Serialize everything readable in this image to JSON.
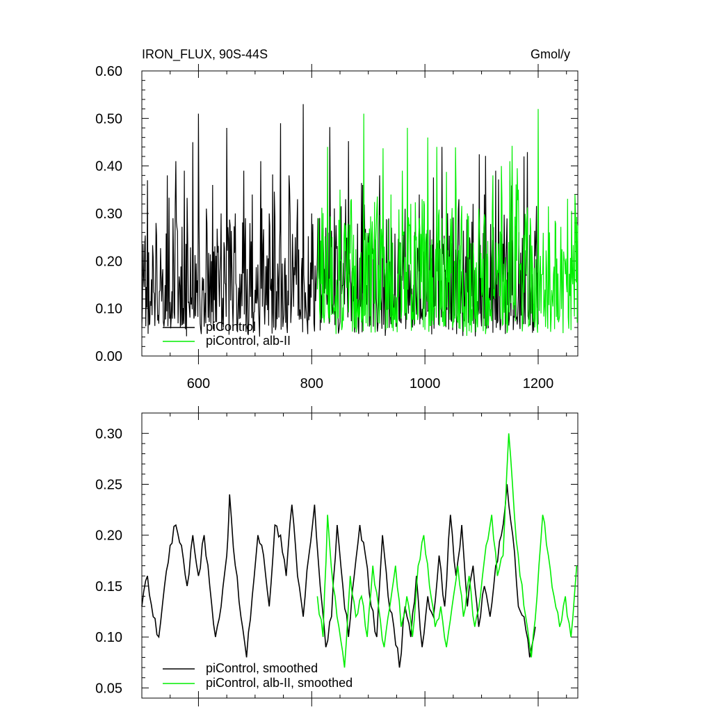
{
  "chart_data": [
    {
      "type": "line",
      "title": "IRON_FLUX, 90S-44S",
      "units": "Gmol/y",
      "xlim": [
        500,
        1270
      ],
      "ylim": [
        0.0,
        0.6
      ],
      "xticks": [
        600,
        800,
        1000,
        1200
      ],
      "xtick_labels": [
        "600",
        "800",
        "1000",
        "1200"
      ],
      "yticks": [
        0.0,
        0.1,
        0.2,
        0.3,
        0.4,
        0.5,
        0.6
      ],
      "ytick_labels": [
        "0.00",
        "0.10",
        "0.20",
        "0.30",
        "0.40",
        "0.50",
        "0.60"
      ],
      "grid": false,
      "legend_position": "bottom-left",
      "series": [
        {
          "name": "piControl",
          "color": "#000000",
          "x_range": [
            500,
            1200
          ],
          "baseline": 0.11,
          "peaks": [
            [
              510,
              0.37
            ],
            [
              525,
              0.28
            ],
            [
              545,
              0.38
            ],
            [
              555,
              0.29
            ],
            [
              560,
              0.41
            ],
            [
              575,
              0.39
            ],
            [
              590,
              0.45
            ],
            [
              600,
              0.51
            ],
            [
              615,
              0.28
            ],
            [
              625,
              0.36
            ],
            [
              640,
              0.3
            ],
            [
              650,
              0.48
            ],
            [
              665,
              0.3
            ],
            [
              680,
              0.39
            ],
            [
              695,
              0.34
            ],
            [
              710,
              0.41
            ],
            [
              725,
              0.3
            ],
            [
              745,
              0.49
            ],
            [
              760,
              0.38
            ],
            [
              775,
              0.33
            ],
            [
              785,
              0.53
            ],
            [
              800,
              0.3
            ],
            [
              825,
              0.27
            ],
            [
              860,
              0.33
            ],
            [
              890,
              0.36
            ],
            [
              920,
              0.38
            ],
            [
              965,
              0.31
            ],
            [
              990,
              0.34
            ],
            [
              1030,
              0.44
            ],
            [
              1060,
              0.33
            ],
            [
              1085,
              0.32
            ],
            [
              1105,
              0.34
            ],
            [
              1125,
              0.39
            ],
            [
              1150,
              0.37
            ],
            [
              1175,
              0.42
            ],
            [
              1195,
              0.21
            ]
          ]
        },
        {
          "name": "piControl, alb-II",
          "color": "#00ee00",
          "x_range": [
            810,
            1270
          ],
          "baseline": 0.12,
          "peaks": [
            [
              828,
              0.44
            ],
            [
              850,
              0.35
            ],
            [
              870,
              0.33
            ],
            [
              892,
              0.51
            ],
            [
              915,
              0.31
            ],
            [
              940,
              0.34
            ],
            [
              960,
              0.39
            ],
            [
              975,
              0.32
            ],
            [
              995,
              0.33
            ],
            [
              1005,
              0.46
            ],
            [
              1030,
              0.29
            ],
            [
              1055,
              0.35
            ],
            [
              1075,
              0.3
            ],
            [
              1095,
              0.31
            ],
            [
              1120,
              0.38
            ],
            [
              1135,
              0.4
            ],
            [
              1150,
              0.41
            ],
            [
              1165,
              0.35
            ],
            [
              1180,
              0.28
            ],
            [
              1200,
              0.52
            ],
            [
              1220,
              0.26
            ],
            [
              1245,
              0.22
            ],
            [
              1265,
              0.34
            ]
          ]
        }
      ]
    },
    {
      "type": "line",
      "xlim": [
        500,
        1270
      ],
      "ylim": [
        0.04,
        0.32
      ],
      "xticks": [
        600,
        800,
        1000,
        1200
      ],
      "yticks": [
        0.05,
        0.1,
        0.15,
        0.2,
        0.25,
        0.3
      ],
      "ytick_labels": [
        "0.05",
        "0.10",
        "0.15",
        "0.20",
        "0.25",
        "0.30"
      ],
      "grid": false,
      "legend_position": "bottom-left",
      "series": [
        {
          "name": "piControl, smoothed",
          "color": "#000000",
          "x_range": [
            500,
            1200
          ],
          "points": [
            [
              500,
              0.13
            ],
            [
              510,
              0.16
            ],
            [
              520,
              0.12
            ],
            [
              530,
              0.1
            ],
            [
              540,
              0.15
            ],
            [
              550,
              0.19
            ],
            [
              560,
              0.21
            ],
            [
              570,
              0.19
            ],
            [
              580,
              0.15
            ],
            [
              590,
              0.2
            ],
            [
              600,
              0.16
            ],
            [
              610,
              0.2
            ],
            [
              620,
              0.15
            ],
            [
              630,
              0.1
            ],
            [
              640,
              0.13
            ],
            [
              650,
              0.18
            ],
            [
              655,
              0.24
            ],
            [
              665,
              0.17
            ],
            [
              675,
              0.12
            ],
            [
              685,
              0.08
            ],
            [
              695,
              0.14
            ],
            [
              705,
              0.2
            ],
            [
              715,
              0.18
            ],
            [
              725,
              0.13
            ],
            [
              735,
              0.21
            ],
            [
              745,
              0.2
            ],
            [
              755,
              0.16
            ],
            [
              765,
              0.23
            ],
            [
              775,
              0.16
            ],
            [
              785,
              0.12
            ],
            [
              795,
              0.18
            ],
            [
              805,
              0.23
            ],
            [
              815,
              0.15
            ],
            [
              825,
              0.09
            ],
            [
              835,
              0.12
            ],
            [
              845,
              0.21
            ],
            [
              855,
              0.15
            ],
            [
              865,
              0.1
            ],
            [
              875,
              0.16
            ],
            [
              885,
              0.21
            ],
            [
              895,
              0.18
            ],
            [
              905,
              0.13
            ],
            [
              915,
              0.1
            ],
            [
              925,
              0.2
            ],
            [
              935,
              0.14
            ],
            [
              945,
              0.11
            ],
            [
              955,
              0.07
            ],
            [
              965,
              0.13
            ],
            [
              975,
              0.1
            ],
            [
              985,
              0.16
            ],
            [
              995,
              0.09
            ],
            [
              1005,
              0.14
            ],
            [
              1015,
              0.12
            ],
            [
              1025,
              0.18
            ],
            [
              1035,
              0.13
            ],
            [
              1045,
              0.22
            ],
            [
              1055,
              0.16
            ],
            [
              1065,
              0.21
            ],
            [
              1075,
              0.13
            ],
            [
              1085,
              0.17
            ],
            [
              1095,
              0.11
            ],
            [
              1105,
              0.15
            ],
            [
              1115,
              0.12
            ],
            [
              1125,
              0.17
            ],
            [
              1135,
              0.2
            ],
            [
              1145,
              0.25
            ],
            [
              1155,
              0.2
            ],
            [
              1165,
              0.13
            ],
            [
              1175,
              0.12
            ],
            [
              1185,
              0.08
            ],
            [
              1195,
              0.11
            ]
          ]
        },
        {
          "name": "piControl, alb-II, smoothed",
          "color": "#00ee00",
          "x_range": [
            810,
            1270
          ],
          "points": [
            [
              810,
              0.14
            ],
            [
              820,
              0.1
            ],
            [
              828,
              0.22
            ],
            [
              838,
              0.15
            ],
            [
              848,
              0.11
            ],
            [
              858,
              0.07
            ],
            [
              868,
              0.16
            ],
            [
              878,
              0.12
            ],
            [
              888,
              0.14
            ],
            [
              898,
              0.1
            ],
            [
              908,
              0.17
            ],
            [
              918,
              0.13
            ],
            [
              928,
              0.09
            ],
            [
              938,
              0.13
            ],
            [
              948,
              0.17
            ],
            [
              958,
              0.11
            ],
            [
              968,
              0.14
            ],
            [
              978,
              0.1
            ],
            [
              988,
              0.17
            ],
            [
              998,
              0.2
            ],
            [
              1008,
              0.15
            ],
            [
              1018,
              0.11
            ],
            [
              1028,
              0.13
            ],
            [
              1038,
              0.09
            ],
            [
              1048,
              0.13
            ],
            [
              1058,
              0.17
            ],
            [
              1068,
              0.12
            ],
            [
              1078,
              0.16
            ],
            [
              1088,
              0.11
            ],
            [
              1098,
              0.14
            ],
            [
              1108,
              0.19
            ],
            [
              1118,
              0.22
            ],
            [
              1128,
              0.16
            ],
            [
              1138,
              0.18
            ],
            [
              1148,
              0.3
            ],
            [
              1158,
              0.22
            ],
            [
              1168,
              0.16
            ],
            [
              1178,
              0.12
            ],
            [
              1188,
              0.08
            ],
            [
              1198,
              0.14
            ],
            [
              1208,
              0.22
            ],
            [
              1218,
              0.18
            ],
            [
              1228,
              0.14
            ],
            [
              1238,
              0.11
            ],
            [
              1248,
              0.14
            ],
            [
              1258,
              0.1
            ],
            [
              1268,
              0.17
            ]
          ]
        }
      ]
    }
  ]
}
